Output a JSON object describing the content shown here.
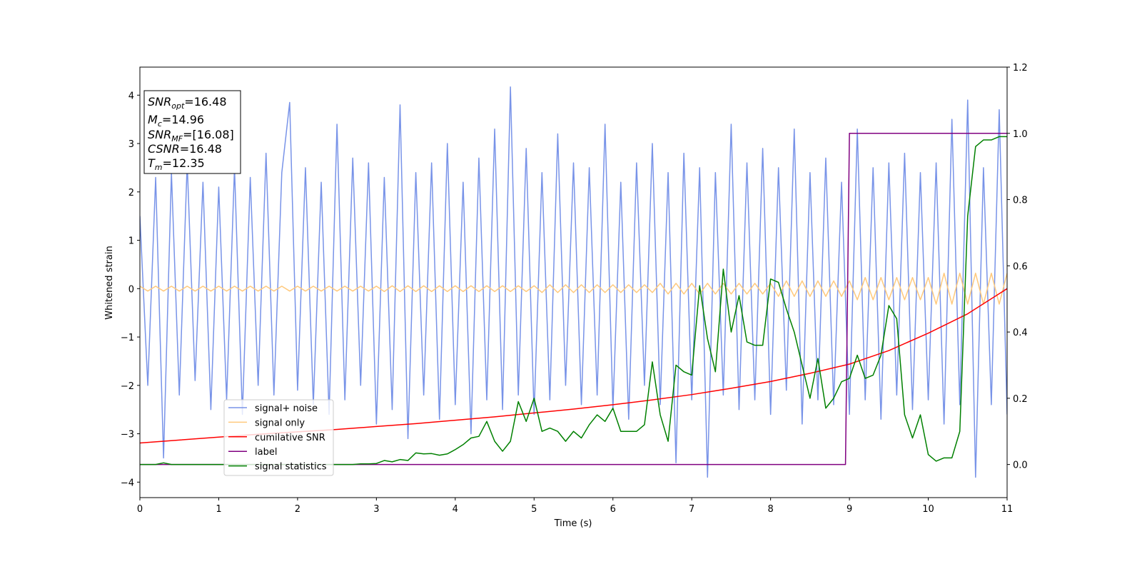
{
  "chart_data": {
    "type": "line",
    "xlabel": "Time (s)",
    "ylabel": "Whitened strain",
    "xlim": [
      0,
      11
    ],
    "ylim": [
      -4.32,
      4.58
    ],
    "y2lim": [
      -0.1,
      1.2
    ],
    "xticks": [
      0,
      1,
      2,
      3,
      4,
      5,
      6,
      7,
      8,
      9,
      10,
      11
    ],
    "yticks": [
      {
        "value": -4,
        "label": "−4"
      },
      {
        "value": -3,
        "label": "−3"
      },
      {
        "value": -2,
        "label": "−2"
      },
      {
        "value": -1,
        "label": "−1"
      },
      0,
      1,
      2,
      3,
      4
    ],
    "y2ticks": [
      {
        "value": 0,
        "label": "0.0"
      },
      0.2,
      0.4,
      0.6,
      0.8,
      {
        "value": 1,
        "label": "1.0"
      },
      1.2
    ],
    "legend": "lower left",
    "annotation": [
      {
        "name": "SNR",
        "sub": "opt",
        "value": "=16.48"
      },
      {
        "name": "M",
        "sub": "c",
        "value": "=14.96"
      },
      {
        "name": "SNR",
        "sub": "MF",
        "value": "=[16.08]"
      },
      {
        "name": "CSNR",
        "value": "=16.48"
      },
      {
        "name": "T",
        "sub": "m",
        "value": "=12.35"
      }
    ],
    "x": [
      0,
      0.1,
      0.2,
      0.3,
      0.4,
      0.5,
      0.6,
      0.7,
      0.8,
      0.9,
      1,
      1.1,
      1.2,
      1.3,
      1.4,
      1.5,
      1.6,
      1.7,
      1.8,
      1.9,
      2,
      2.1,
      2.2,
      2.3,
      2.4,
      2.5,
      2.6,
      2.7,
      2.8,
      2.9,
      3,
      3.1,
      3.2,
      3.3,
      3.4,
      3.5,
      3.6,
      3.7,
      3.8,
      3.9,
      4,
      4.1,
      4.2,
      4.3,
      4.4,
      4.5,
      4.6,
      4.7,
      4.8,
      4.9,
      5,
      5.1,
      5.2,
      5.3,
      5.4,
      5.5,
      5.6,
      5.7,
      5.8,
      5.9,
      6,
      6.1,
      6.2,
      6.3,
      6.4,
      6.5,
      6.6,
      6.7,
      6.8,
      6.9,
      7,
      7.1,
      7.2,
      7.3,
      7.4,
      7.5,
      7.6,
      7.7,
      7.8,
      7.9,
      8,
      8.1,
      8.2,
      8.3,
      8.4,
      8.5,
      8.6,
      8.7,
      8.8,
      8.9,
      9,
      9.1,
      9.2,
      9.3,
      9.4,
      9.5,
      9.6,
      9.7,
      9.8,
      9.9,
      10,
      10.1,
      10.2,
      10.3,
      10.4,
      10.5,
      10.6,
      10.7,
      10.8,
      10.9,
      11
    ],
    "series": [
      {
        "name": "signal+ noise",
        "color": "#7893e8",
        "values": [
          1.5,
          -2.0,
          2.3,
          -3.5,
          2.4,
          -2.2,
          2.6,
          -1.9,
          2.2,
          -2.5,
          2.1,
          -2.3,
          2.5,
          -2.6,
          2.3,
          -2.0,
          2.8,
          -2.2,
          2.4,
          3.85,
          -2.1,
          2.5,
          -2.4,
          2.2,
          -2.6,
          3.4,
          -2.3,
          2.7,
          -2.0,
          2.6,
          -2.8,
          2.3,
          -2.5,
          3.8,
          -3.1,
          2.4,
          -2.2,
          2.6,
          -2.7,
          3.0,
          -2.4,
          2.2,
          -3.0,
          2.7,
          -2.3,
          3.3,
          -2.5,
          4.17,
          -2.2,
          2.9,
          -2.6,
          2.4,
          -2.3,
          3.2,
          -2.0,
          2.6,
          -2.4,
          2.5,
          -2.2,
          3.4,
          -2.5,
          2.2,
          -2.7,
          2.6,
          -2.0,
          3.0,
          -2.4,
          2.4,
          -3.6,
          2.8,
          -2.3,
          2.5,
          -3.9,
          2.4,
          -2.2,
          3.4,
          -2.5,
          2.6,
          -2.3,
          2.9,
          -2.6,
          2.5,
          -2.1,
          3.3,
          -2.8,
          2.4,
          -2.3,
          2.7,
          -2.4,
          2.2,
          -2.6,
          3.3,
          -2.3,
          2.5,
          -2.7,
          2.6,
          -2.2,
          2.8,
          -2.5,
          2.4,
          -2.3,
          2.6,
          -2.8,
          3.5,
          -2.4,
          3.9,
          -3.9,
          2.5,
          -2.4,
          3.7,
          -2.6
        ]
      },
      {
        "name": "signal only",
        "color": "#ffc97d",
        "values": [
          0.05,
          -0.05,
          0.05,
          -0.05,
          0.05,
          -0.05,
          0.05,
          -0.05,
          0.05,
          -0.05,
          0.05,
          -0.05,
          0.05,
          -0.05,
          0.05,
          -0.05,
          0.05,
          -0.05,
          0.05,
          -0.05,
          0.05,
          -0.05,
          0.05,
          -0.05,
          0.05,
          -0.05,
          0.05,
          -0.05,
          0.05,
          -0.05,
          0.05,
          -0.06,
          0.06,
          -0.06,
          0.06,
          -0.06,
          0.06,
          -0.06,
          0.06,
          -0.06,
          0.06,
          -0.06,
          0.06,
          -0.06,
          0.06,
          -0.06,
          0.06,
          -0.06,
          0.06,
          -0.06,
          0.06,
          -0.08,
          0.08,
          -0.08,
          0.08,
          -0.08,
          0.08,
          -0.08,
          0.08,
          -0.08,
          0.08,
          -0.08,
          0.08,
          -0.08,
          0.08,
          -0.08,
          0.11,
          -0.11,
          0.11,
          -0.11,
          0.11,
          -0.11,
          0.11,
          -0.11,
          0.11,
          -0.11,
          0.11,
          -0.11,
          0.11,
          -0.11,
          0.11,
          -0.16,
          0.16,
          -0.16,
          0.16,
          -0.16,
          0.16,
          -0.16,
          0.16,
          -0.16,
          0.16,
          -0.23,
          0.23,
          -0.23,
          0.23,
          -0.23,
          0.23,
          -0.23,
          0.23,
          -0.23,
          0.23,
          -0.32,
          0.32,
          -0.32,
          0.32,
          -0.32,
          0.32,
          -0.32,
          0.32,
          -0.32,
          0.32
        ]
      },
      {
        "name": "cumilative SNR",
        "color": "#ff0000",
        "x": [
          0,
          0.5,
          1,
          1.5,
          2,
          2.5,
          3,
          3.5,
          4,
          4.5,
          5,
          5.5,
          6,
          6.5,
          7,
          7.5,
          8,
          8.5,
          9,
          9.5,
          10,
          10.5,
          11
        ],
        "values": [
          -3.19,
          -3.13,
          -3.07,
          -3.01,
          -2.96,
          -2.91,
          -2.85,
          -2.79,
          -2.72,
          -2.65,
          -2.57,
          -2.49,
          -2.4,
          -2.3,
          -2.19,
          -2.06,
          -1.92,
          -1.75,
          -1.56,
          -1.28,
          -0.92,
          -0.52,
          0
        ]
      },
      {
        "name": "label",
        "color": "#800080",
        "axis": "y2",
        "x": [
          0,
          8.95,
          9.0,
          11
        ],
        "values": [
          0,
          0,
          1,
          1
        ]
      },
      {
        "name": "signal statistics",
        "color": "#008000",
        "axis": "y2",
        "values": [
          0,
          0,
          0,
          0.005,
          0,
          0,
          0,
          0,
          0,
          0,
          0,
          0,
          0,
          0,
          0,
          0,
          0,
          0,
          0,
          0,
          0,
          0,
          0,
          0,
          0,
          0,
          0,
          0,
          0.002,
          0.002,
          0.003,
          0.012,
          0.008,
          0.015,
          0.012,
          0.035,
          0.032,
          0.033,
          0.028,
          0.032,
          0.045,
          0.06,
          0.08,
          0.085,
          0.13,
          0.07,
          0.04,
          0.07,
          0.19,
          0.13,
          0.2,
          0.1,
          0.11,
          0.1,
          0.07,
          0.1,
          0.08,
          0.12,
          0.15,
          0.13,
          0.17,
          0.1,
          0.1,
          0.1,
          0.12,
          0.31,
          0.15,
          0.07,
          0.3,
          0.28,
          0.27,
          0.54,
          0.38,
          0.28,
          0.59,
          0.4,
          0.51,
          0.37,
          0.36,
          0.36,
          0.56,
          0.55,
          0.47,
          0.4,
          0.3,
          0.2,
          0.32,
          0.17,
          0.2,
          0.25,
          0.26,
          0.33,
          0.26,
          0.27,
          0.33,
          0.48,
          0.44,
          0.15,
          0.08,
          0.15,
          0.03,
          0.01,
          0.02,
          0.02,
          0.1,
          0.75,
          0.96,
          0.98,
          0.98,
          0.99,
          0.99
        ]
      }
    ]
  }
}
